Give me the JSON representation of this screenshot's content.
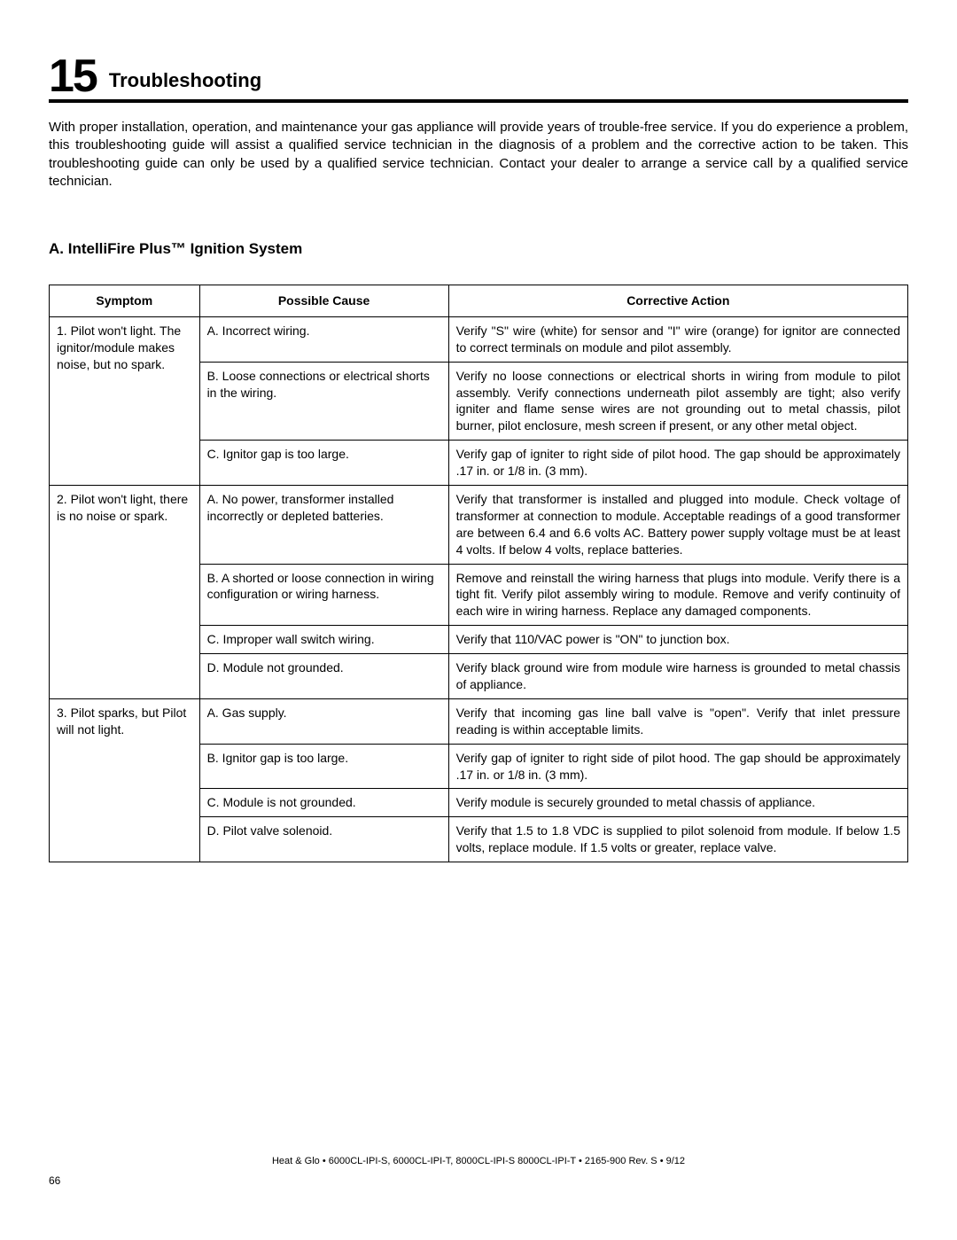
{
  "section_number": "15",
  "section_title": "Troubleshooting",
  "intro": "With proper installation, operation, and maintenance your gas appliance will provide years of trouble-free service.  If you do experience a problem, this troubleshooting guide will assist a qualified service technician in the diagnosis of a problem and the corrective action to be taken. This troubleshooting guide can only be used by a qualified service technician.  Contact your dealer to arrange a service call by a qualified service technician.",
  "subsection": "A.  IntelliFire Plus™ Ignition System",
  "headers": {
    "symptom": "Symptom",
    "cause": "Possible Cause",
    "action": "Corrective Action"
  },
  "rows": [
    {
      "symptom": "1. Pilot won't light. The ignitor/module makes noise, but no spark.",
      "symptom_rowspan": 3,
      "cause": "A.  Incorrect wiring.",
      "action": "Verify \"S\" wire (white) for sensor and \"I\" wire (orange) for ignitor are connected to correct terminals on module and pilot assembly."
    },
    {
      "cause": "B.  Loose connections or electrical shorts in the wiring.",
      "action": "Verify no loose connections or electrical shorts in wiring from module to pilot assembly. Verify connections underneath pilot assembly are tight; also verify igniter and flame sense wires are not grounding out to metal chassis, pilot burner, pilot enclosure, mesh screen if present, or any other metal object."
    },
    {
      "cause": "C.  Ignitor gap is too large.",
      "action": "Verify gap of igniter to right side of pilot hood. The gap should be approximately .17 in. or 1/8 in. (3 mm)."
    },
    {
      "symptom": "2. Pilot won't light, there is no noise or spark.",
      "symptom_rowspan": 4,
      "cause": "A.  No power, transformer installed incorrectly or depleted batteries.",
      "action": "Verify that transformer is installed and plugged into module. Check voltage of transformer at connection to module. Acceptable readings of a good transformer are between 6.4 and 6.6 volts AC.  Battery power supply voltage must be at least 4 volts.  If below 4 volts, replace batteries."
    },
    {
      "cause": "B.  A shorted or loose connection in wiring configuration or wiring harness.",
      "action": "Remove and reinstall the wiring harness that plugs into module. Verify there is a tight fit. Verify pilot assembly wiring to module. Remove and verify continuity of each wire in wiring harness.  Replace any damaged components."
    },
    {
      "cause": "C.  Improper wall switch wiring.",
      "action": "Verify that 110/VAC power is \"ON\" to junction box."
    },
    {
      "cause": "D.  Module not grounded.",
      "action": "Verify black ground wire from module wire harness is grounded to metal chassis of appliance."
    },
    {
      "symptom": "3. Pilot sparks, but Pilot will not light.",
      "symptom_rowspan": 4,
      "cause": "A.  Gas supply.",
      "action": "Verify that incoming gas line ball valve is \"open\". Verify that inlet pressure reading is within acceptable limits."
    },
    {
      "cause": "B.  Ignitor gap is too large.",
      "action": "Verify gap of igniter to right side of pilot hood. The gap should be approximately .17 in. or 1/8 in. (3 mm)."
    },
    {
      "cause": "C.  Module is not grounded.",
      "action": "Verify module is securely grounded to metal chassis of appliance."
    },
    {
      "cause": "D.  Pilot valve solenoid.",
      "action": "Verify that 1.5 to 1.8 VDC is supplied to pilot solenoid from module. If below 1.5 volts, replace module.  If 1.5 volts or greater, replace valve."
    }
  ],
  "footer": "Heat & Glo  •  6000CL-IPI-S, 6000CL-IPI-T, 8000CL-IPI-S 8000CL-IPI-T  •  2165-900 Rev. S  •  9/12",
  "page_number": "66"
}
